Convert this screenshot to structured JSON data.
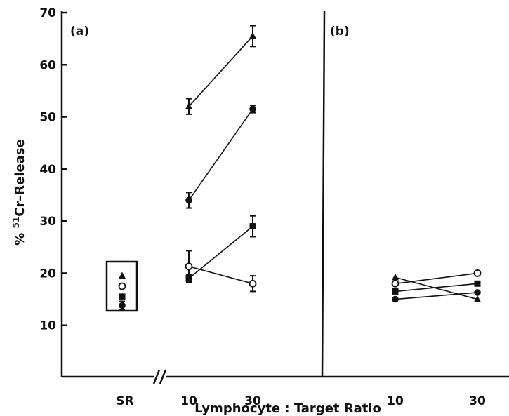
{
  "chart_data": {
    "type": "line",
    "xlabel": "Lymphocyte : Target Ratio",
    "ylabel_prefix": "% ",
    "ylabel_sup": "51",
    "ylabel_rest": "Cr–Release",
    "ylim": [
      0,
      70
    ],
    "yticks": [
      10,
      20,
      30,
      40,
      50,
      60,
      70
    ],
    "grid": false,
    "panels": [
      {
        "label": "(a)",
        "x": [
          "10",
          "30"
        ],
        "sr_label": "SR",
        "sr_box": [
          {
            "marker": "triangle",
            "value": 19.5
          },
          {
            "marker": "circle-open",
            "value": 17.5
          },
          {
            "marker": "square",
            "value": 15.5
          },
          {
            "marker": "circle-filled",
            "value": 13.8,
            "err": 0.8
          }
        ],
        "series": [
          {
            "marker": "triangle",
            "values": [
              52,
              65.5
            ],
            "err": [
              1.5,
              2.0
            ]
          },
          {
            "marker": "circle-filled",
            "values": [
              34,
              51.5
            ],
            "err": [
              1.5,
              0.7
            ]
          },
          {
            "marker": "square",
            "values": [
              19,
              29
            ],
            "err": [
              0.7,
              2.0
            ]
          },
          {
            "marker": "circle-open",
            "values": [
              21.3,
              18
            ],
            "err": [
              3.0,
              1.5
            ]
          }
        ]
      },
      {
        "label": "(b)",
        "x": [
          "10",
          "30"
        ],
        "series": [
          {
            "marker": "triangle",
            "values": [
              19.2,
              15
            ]
          },
          {
            "marker": "circle-open",
            "values": [
              18,
              20
            ]
          },
          {
            "marker": "square",
            "values": [
              16.5,
              18
            ]
          },
          {
            "marker": "circle-filled",
            "values": [
              15,
              16.3
            ]
          }
        ]
      }
    ]
  }
}
